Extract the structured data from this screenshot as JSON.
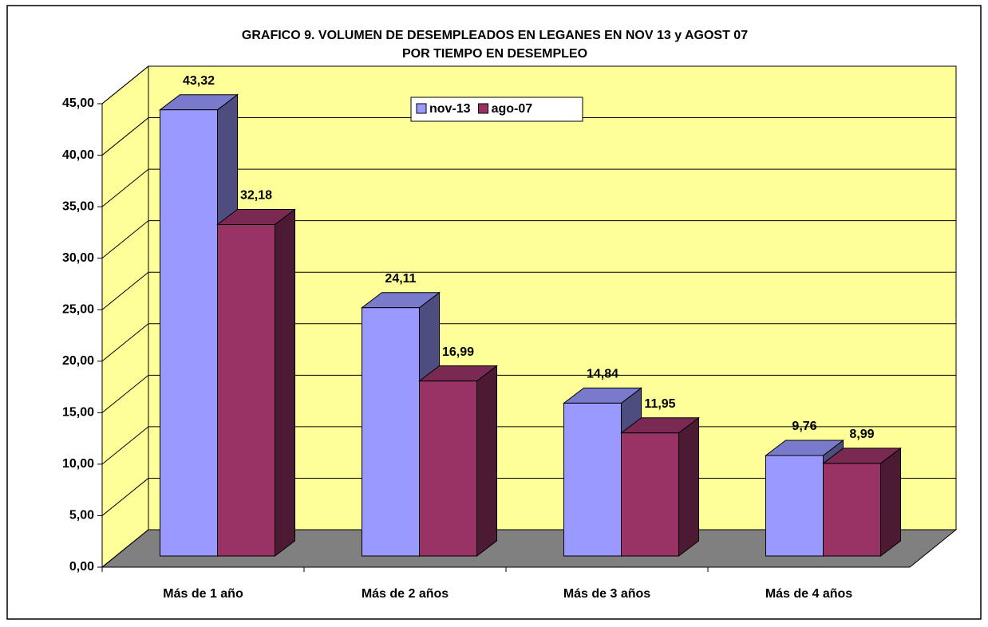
{
  "chart_data": {
    "type": "bar3d",
    "title": "GRAFICO 9. VOLUMEN DE DESEMPLEADOS EN LEGANES EN NOV 13 y AGOST 07",
    "subtitle": "POR TIEMPO EN DESEMPLEO",
    "categories": [
      "Más de 1 año",
      "Más de 2 años",
      "Más de 3 años",
      "Más de 4 años"
    ],
    "series": [
      {
        "name": "nov-13",
        "color": "#9999ff",
        "values": [
          43.32,
          24.11,
          14.84,
          9.76
        ],
        "value_labels": [
          "43,32",
          "24,11",
          "14,84",
          "9,76"
        ]
      },
      {
        "name": "ago-07",
        "color": "#993366",
        "values": [
          32.18,
          16.99,
          11.95,
          8.99
        ],
        "value_labels": [
          "32,18",
          "16,99",
          "11,95",
          "8,99"
        ]
      }
    ],
    "ylim": [
      0,
      45
    ],
    "yticks": [
      {
        "value": 0,
        "label": "0,00"
      },
      {
        "value": 5,
        "label": "5,00"
      },
      {
        "value": 10,
        "label": "10,00"
      },
      {
        "value": 15,
        "label": "15,00"
      },
      {
        "value": 20,
        "label": "20,00"
      },
      {
        "value": 25,
        "label": "25,00"
      },
      {
        "value": 30,
        "label": "30,00"
      },
      {
        "value": 35,
        "label": "35,00"
      },
      {
        "value": 40,
        "label": "40,00"
      },
      {
        "value": 45,
        "label": "45,00"
      }
    ],
    "grid": true,
    "legend": "top"
  }
}
